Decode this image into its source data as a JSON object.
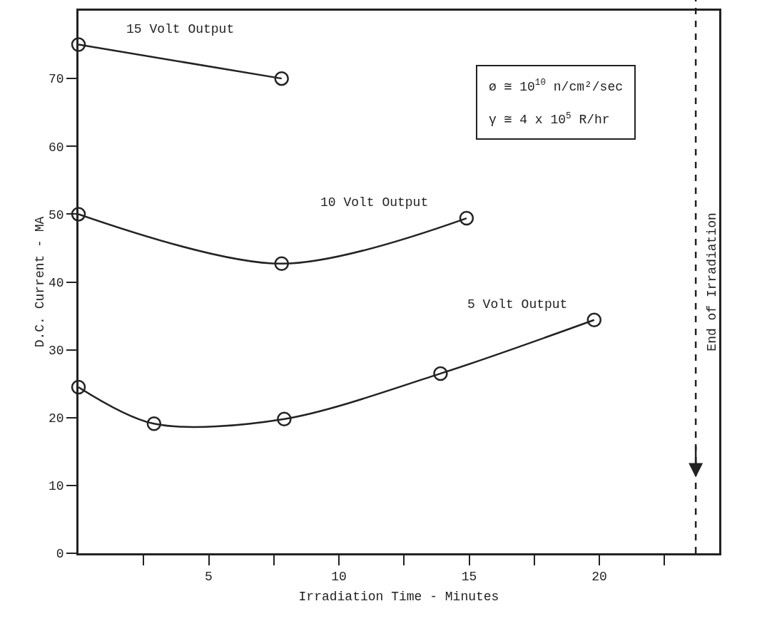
{
  "chart_data": {
    "type": "line",
    "xlabel": "Irradiation Time - Minutes",
    "ylabel": "D.C. Current - MA",
    "series": [
      {
        "name": "15 Volt Output",
        "color": "#222222",
        "x": [
          0,
          7.8
        ],
        "values": [
          75,
          70
        ]
      },
      {
        "name": "10 Volt Output",
        "color": "#222222",
        "x": [
          0,
          7.8,
          14.9
        ],
        "values": [
          50,
          42.7,
          49.4
        ]
      },
      {
        "name": "5 Volt Output",
        "color": "#222222",
        "x": [
          0,
          2.9,
          7.9,
          13.9,
          19.8
        ],
        "values": [
          24.5,
          19.1,
          19.8,
          26.5,
          34.4
        ]
      }
    ],
    "xlim": [
      0,
      24.6
    ],
    "xticks": [
      {
        "value": 2.5,
        "label": null
      },
      5,
      {
        "value": 7.5,
        "label": null
      },
      10,
      {
        "value": 12.5,
        "label": null
      },
      15,
      {
        "value": 17.5,
        "label": null
      },
      20,
      {
        "value": 22.5,
        "label": null
      }
    ],
    "ylim": [
      0,
      80
    ],
    "yticks": [
      0,
      10,
      20,
      30,
      40,
      50,
      60,
      70
    ],
    "ref_lines": [
      {
        "axis": "x",
        "value": 23.7,
        "label": "End of Irradiation",
        "color": "#222222",
        "line_style": "dashed"
      }
    ],
    "annotations": [
      "ø ≅ 10$^{10}$ n/cm²/sec",
      "γ ≅ 4 x 10$^{5}$ R/hr"
    ],
    "marker": "circle",
    "line_style": "solid",
    "grid": false,
    "legend": false
  }
}
